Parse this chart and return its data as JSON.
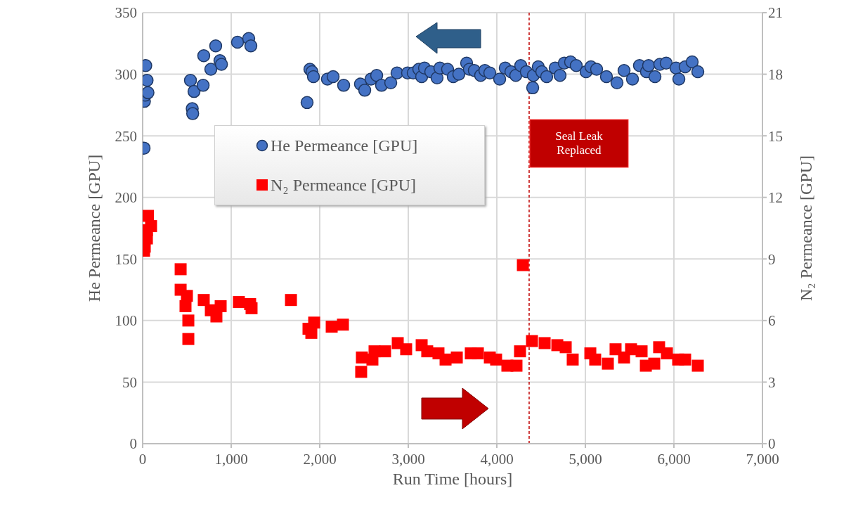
{
  "chart_data": {
    "type": "scatter",
    "xlabel": "Run Time [hours]",
    "ylabel": "He Permeance [GPU]",
    "y2label": "N₂ Permeance [GPU]",
    "xlim": [
      0,
      7000
    ],
    "xticks": [
      0,
      {
        "value": 1000,
        "label": "1,000"
      },
      {
        "value": 2000,
        "label": "2,000"
      },
      {
        "value": 3000,
        "label": "3,000"
      },
      {
        "value": 4000,
        "label": "4,000"
      },
      {
        "value": 5000,
        "label": "5,000"
      },
      {
        "value": 6000,
        "label": "6,000"
      },
      {
        "value": 7000,
        "label": "7,000"
      }
    ],
    "ylim": [
      0,
      350
    ],
    "yticks": [
      0,
      50,
      100,
      150,
      200,
      250,
      300,
      350
    ],
    "y2lim": [
      0,
      21
    ],
    "y2ticks": [
      0,
      3,
      6,
      9,
      12,
      15,
      18,
      21
    ],
    "grid": true,
    "legend": "left",
    "series": [
      {
        "name": "He Permeance [GPU]",
        "color": "#4472c4",
        "marker": "circle",
        "x": [
          16,
          20,
          30,
          50,
          60,
          35,
          540,
          560,
          565,
          580,
          683,
          690,
          770,
          825,
          873,
          890,
          1071,
          1198,
          1222,
          1857,
          1889,
          1913,
          1929,
          2087,
          2151,
          2270,
          2460,
          2508,
          2579,
          2643,
          2698,
          2802,
          2873,
          2992,
          3056,
          3119,
          3151,
          3183,
          3254,
          3325,
          3357,
          3444,
          3508,
          3571,
          3659,
          3690,
          3746,
          3817,
          3865,
          3921,
          4032,
          4095,
          4159,
          4214,
          4270,
          4333,
          4405,
          4413,
          4468,
          4508,
          4563,
          4659,
          4714,
          4762,
          4833,
          4897,
          5008,
          5063,
          5127,
          5238,
          5357,
          5437,
          5532,
          5611,
          5690,
          5714,
          5786,
          5841,
          5913,
          6024,
          6056,
          6127,
          6206,
          6270
        ],
        "values": [
          240,
          278,
          283,
          295,
          285,
          307,
          295,
          272,
          268,
          286,
          291,
          315,
          304,
          323,
          311,
          308,
          326,
          329,
          323,
          277,
          304,
          302,
          298,
          296,
          298,
          291,
          292,
          287,
          296,
          299,
          291,
          293,
          301,
          301,
          301,
          304,
          298,
          305,
          302,
          297,
          305,
          304,
          298,
          300,
          309,
          304,
          303,
          299,
          303,
          301,
          296,
          305,
          302,
          299,
          307,
          302,
          289,
          299,
          306,
          302,
          298,
          305,
          299,
          309,
          310,
          307,
          302,
          306,
          304,
          298,
          293,
          303,
          296,
          307,
          302,
          307,
          298,
          308,
          309,
          305,
          296,
          306,
          310,
          302
        ]
      },
      {
        "name": "N₂ Permeance [GPU]",
        "color": "#ff0000",
        "marker": "square",
        "axis": "y2",
        "x": [
          16,
          24,
          48,
          95,
          48,
          60,
          429,
          429,
          500,
          484,
          516,
          516,
          690,
          770,
          833,
          881,
          1087,
          1214,
          1230,
          1675,
          1873,
          1905,
          1937,
          2135,
          2262,
          2468,
          2476,
          2619,
          2595,
          2738,
          2881,
          2976,
          3151,
          3214,
          3341,
          3421,
          3548,
          3706,
          3786,
          3921,
          3992,
          4119,
          4222,
          4262,
          4294,
          4397,
          4540,
          4683,
          4778,
          4857,
          5056,
          5111,
          5254,
          5341,
          5437,
          5516,
          5635,
          5683,
          5778,
          5833,
          5921,
          6048,
          6127,
          6270
        ],
        "values": [
          9.4,
          9.6,
          10.4,
          10.6,
          10.0,
          11.1,
          8.5,
          7.5,
          7.2,
          6.7,
          6.0,
          5.1,
          7.0,
          6.5,
          6.2,
          6.7,
          6.9,
          6.8,
          6.6,
          7.0,
          5.6,
          5.4,
          5.9,
          5.7,
          5.8,
          3.5,
          4.2,
          4.5,
          4.1,
          4.5,
          4.9,
          4.6,
          4.8,
          4.5,
          4.4,
          4.1,
          4.2,
          4.4,
          4.4,
          4.2,
          4.1,
          3.8,
          3.8,
          4.5,
          8.7,
          5.0,
          4.9,
          4.8,
          4.7,
          4.1,
          4.4,
          4.1,
          3.9,
          4.6,
          4.2,
          4.6,
          4.5,
          3.8,
          3.9,
          4.7,
          4.4,
          4.1,
          4.1,
          3.8
        ]
      }
    ],
    "ref_lines": [
      {
        "axis": "x",
        "value": 4365,
        "label": "Seal Leak Replaced",
        "color": "#c00000",
        "line_style": "dashed"
      }
    ]
  }
}
